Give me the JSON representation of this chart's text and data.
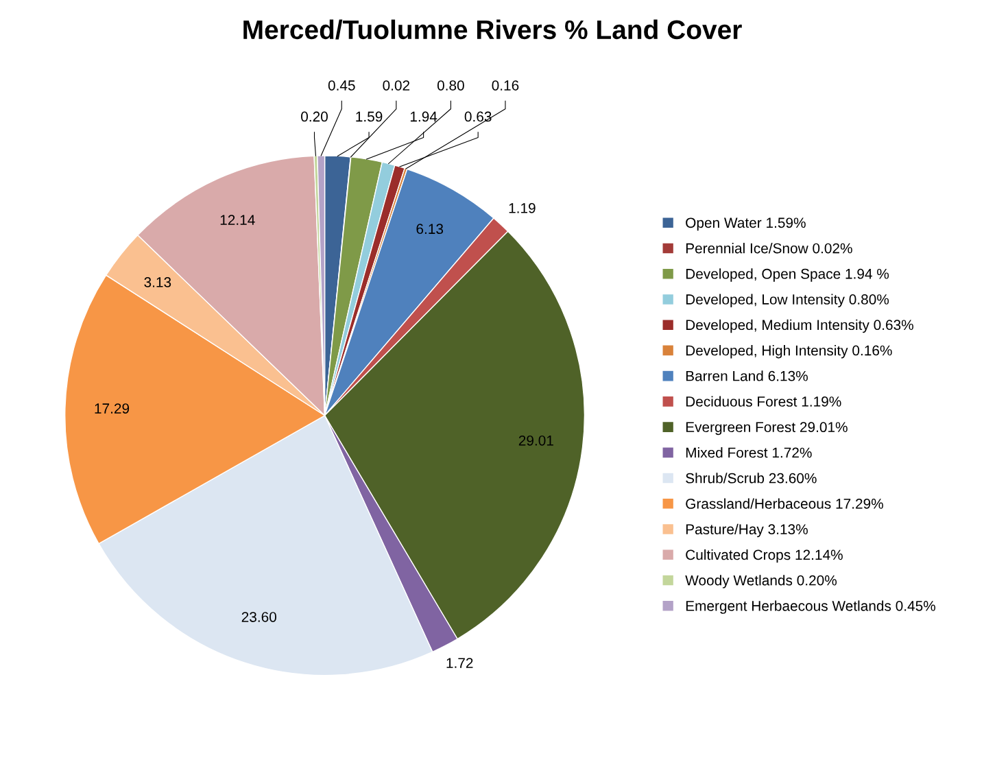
{
  "chart_data": {
    "type": "pie",
    "title": "Merced/Tuolumne Rivers % Land Cover",
    "categories": [
      "Open Water 1.59%",
      "Perennial Ice/Snow 0.02%",
      "Developed, Open Space 1.94 %",
      "Developed, Low Intensity 0.80%",
      "Developed, Medium Intensity 0.63%",
      "Developed, High Intensity 0.16%",
      "Barren Land 6.13%",
      "Deciduous Forest 1.19%",
      "Evergreen Forest 29.01%",
      "Mixed Forest 1.72%",
      "Shrub/Scrub 23.60%",
      "Grassland/Herbaceous 17.29%",
      "Pasture/Hay 3.13%",
      "Cultivated Crops 12.14%",
      "Woody Wetlands 0.20%",
      "Emergent Herbaecous Wetlands 0.45%"
    ],
    "values": [
      1.59,
      0.02,
      1.94,
      0.8,
      0.63,
      0.16,
      6.13,
      1.19,
      29.01,
      1.72,
      23.6,
      17.29,
      3.13,
      12.14,
      0.2,
      0.45
    ],
    "value_labels": [
      "1.59",
      "0.02",
      "1.94",
      "0.80",
      "0.63",
      "0.16",
      "6.13",
      "1.19",
      "29.01",
      "1.72",
      "23.60",
      "17.29",
      "3.13",
      "12.14",
      "0.20",
      "0.45"
    ],
    "colors": [
      "#3c6496",
      "#a33b38",
      "#7f9a48",
      "#93cddd",
      "#9b2d2a",
      "#d9823a",
      "#4f81bd",
      "#c0504d",
      "#4f6228",
      "#8064a2",
      "#dce6f2",
      "#f79646",
      "#fac090",
      "#d9aaaa",
      "#c3d69b",
      "#b3a2c7"
    ],
    "legend": "right"
  }
}
